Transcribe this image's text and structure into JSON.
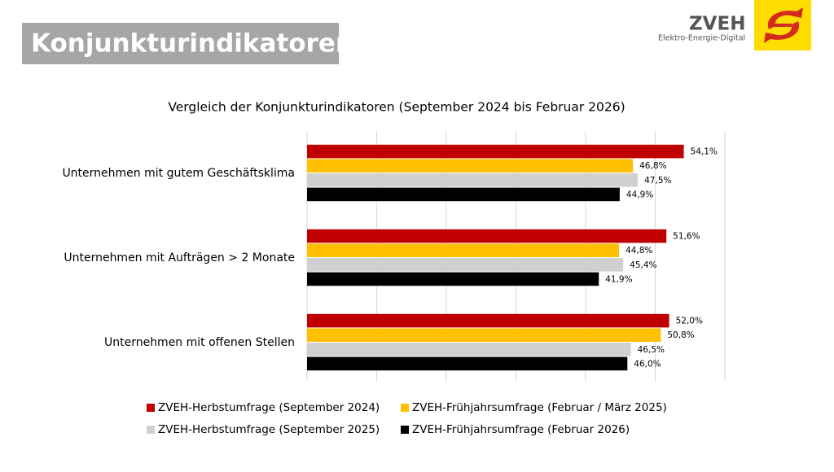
{
  "header": {
    "title": "Konjunkturindikatoren",
    "logo_name": "ZVEH",
    "logo_tagline": "Elektro-Energie-Digital"
  },
  "chart_data": {
    "type": "bar",
    "orientation": "horizontal",
    "title": "Vergleich der Konjunkturindikatoren (September 2024 bis Februar 2026)",
    "categories": [
      "Unternehmen mit gutem Geschäftsklima",
      "Unternehmen mit Aufträgen > 2 Monate",
      "Unternehmen mit offenen Stellen"
    ],
    "series": [
      {
        "name": "ZVEH-Herbstumfrage (September 2024)",
        "color": "#c00000",
        "values": [
          54.1,
          51.6,
          52.0
        ],
        "value_labels": [
          "54,1%",
          "51,6%",
          "52,0%"
        ]
      },
      {
        "name": "ZVEH-Frühjahrsumfrage (Februar / März 2025)",
        "color": "#ffc000",
        "values": [
          46.8,
          44.8,
          50.8
        ],
        "value_labels": [
          "46,8%",
          "44,8%",
          "50,8%"
        ]
      },
      {
        "name": "ZVEH-Herbstumfrage (September 2025)",
        "color": "#d0d0d0",
        "values": [
          47.5,
          45.4,
          46.5
        ],
        "value_labels": [
          "47,5%",
          "45,4%",
          "46,5%"
        ]
      },
      {
        "name": "ZVEH-Frühjahrsumfrage (Februar 2026)",
        "color": "#000000",
        "values": [
          44.9,
          41.9,
          46.0
        ],
        "value_labels": [
          "44,9%",
          "41,9%",
          "46,0%"
        ]
      }
    ],
    "xlim": [
      0,
      60
    ],
    "xticks": [
      0,
      10,
      20,
      30,
      40,
      50,
      60
    ],
    "grid": true,
    "legend": "bottom"
  }
}
